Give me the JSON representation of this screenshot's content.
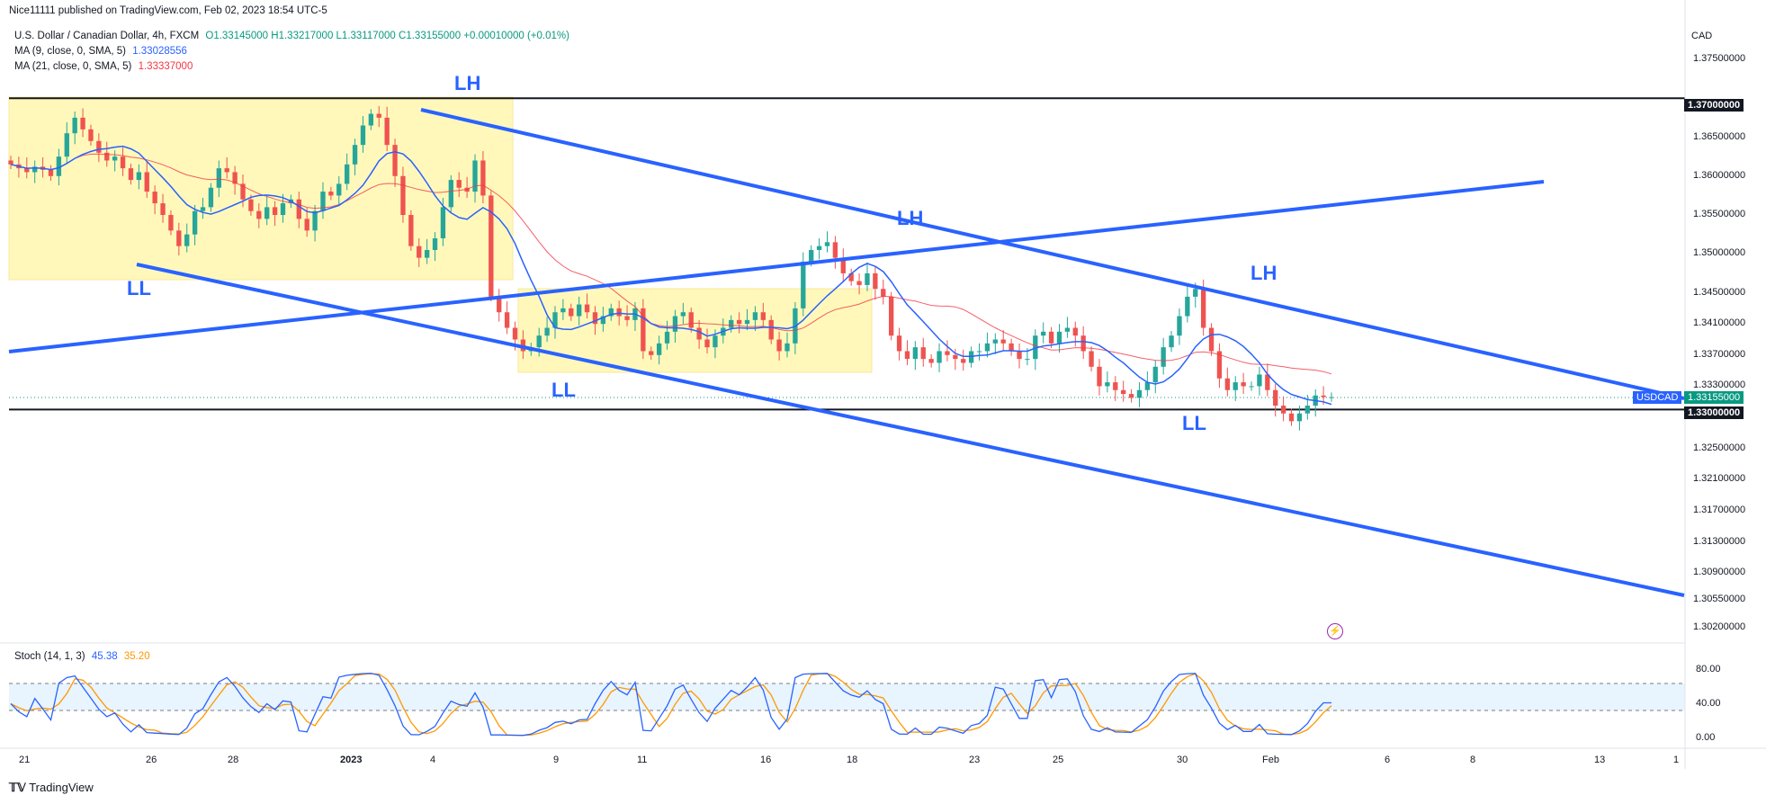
{
  "header": {
    "publisher": "Nice11111 published on TradingView.com, Feb 02, 2023 18:54 UTC-5",
    "symbol_line": "U.S. Dollar / Canadian Dollar, 4h, FXCM",
    "ohlc": "O1.33145000  H1.33217000  L1.33117000  C1.33155000  +0.00010000 (+0.01%)",
    "ma9_label": "MA (9, close, 0, SMA, 5)",
    "ma9_value": "1.33028556",
    "ma21_label": "MA (21, close, 0, SMA, 5)",
    "ma21_value": "1.33337000"
  },
  "price_axis": {
    "currency": "CAD",
    "ticks": [
      "1.37500000",
      "1.37000000",
      "1.36500000",
      "1.36000000",
      "1.35500000",
      "1.35000000",
      "1.34500000",
      "1.34100000",
      "1.33700000",
      "1.33300000",
      "1.33000000",
      "1.32500000",
      "1.32100000",
      "1.31700000",
      "1.31300000",
      "1.30900000",
      "1.30550000",
      "1.30200000"
    ],
    "tick_values": [
      1.375,
      1.37,
      1.365,
      1.36,
      1.355,
      1.35,
      1.345,
      1.341,
      1.337,
      1.333,
      1.33,
      1.325,
      1.321,
      1.317,
      1.313,
      1.309,
      1.3055,
      1.302
    ],
    "highlight_top": "1.37000000",
    "highlight_bottom": "1.33000000",
    "symbol_tag": "USDCAD",
    "last_price": "1.33155000"
  },
  "time_axis": [
    "21",
    "26",
    "28",
    "2023",
    "4",
    "9",
    "11",
    "16",
    "18",
    "23",
    "25",
    "30",
    "Feb",
    "6",
    "8",
    "13",
    "1"
  ],
  "wave_labels": [
    "LH",
    "LH",
    "LH",
    "LL",
    "LL",
    "LL"
  ],
  "stoch": {
    "label": "Stoch (14, 1, 3)",
    "k_value": "45.38",
    "d_value": "35.20",
    "ticks": [
      "80.00",
      "40.00",
      "0.00"
    ]
  },
  "footer": {
    "brand": "TradingView"
  },
  "colors": {
    "up": "#26a69a",
    "down": "#ef5350",
    "ma9": "#2962ff",
    "ma21": "#f23645",
    "trend": "#2962ff",
    "zone": "#fff59d",
    "stoch_k": "#2962ff",
    "stoch_d": "#ff9800"
  },
  "chart_data": {
    "type": "candlestick",
    "title": "U.S. Dollar / Canadian Dollar, 4h, FXCM",
    "ylim": [
      1.3,
      1.378
    ],
    "horizontal_levels": [
      1.37,
      1.33
    ],
    "closes": [
      1.3615,
      1.361,
      1.3605,
      1.3612,
      1.3608,
      1.36,
      1.3625,
      1.3655,
      1.3675,
      1.366,
      1.3645,
      1.363,
      1.362,
      1.3625,
      1.361,
      1.3595,
      1.3605,
      1.358,
      1.3565,
      1.355,
      1.353,
      1.351,
      1.3525,
      1.3555,
      1.356,
      1.3585,
      1.361,
      1.3605,
      1.359,
      1.357,
      1.3555,
      1.3545,
      1.356,
      1.355,
      1.3565,
      1.357,
      1.3545,
      1.353,
      1.3555,
      1.358,
      1.3575,
      1.359,
      1.3615,
      1.364,
      1.3665,
      1.368,
      1.3675,
      1.364,
      1.36,
      1.355,
      1.351,
      1.3495,
      1.3505,
      1.352,
      1.356,
      1.3595,
      1.3585,
      1.358,
      1.362,
      1.3575,
      1.3445,
      1.3425,
      1.3405,
      1.339,
      1.3375,
      1.338,
      1.3395,
      1.3405,
      1.3425,
      1.343,
      1.342,
      1.3435,
      1.3425,
      1.341,
      1.342,
      1.343,
      1.342,
      1.3415,
      1.343,
      1.3375,
      1.337,
      1.3385,
      1.34,
      1.342,
      1.3425,
      1.3405,
      1.339,
      1.338,
      1.3395,
      1.3405,
      1.3415,
      1.341,
      1.3415,
      1.3425,
      1.3415,
      1.339,
      1.3375,
      1.3385,
      1.343,
      1.349,
      1.3505,
      1.351,
      1.3515,
      1.3495,
      1.3475,
      1.3465,
      1.346,
      1.3475,
      1.3455,
      1.3445,
      1.3395,
      1.3375,
      1.3365,
      1.338,
      1.3365,
      1.336,
      1.3375,
      1.337,
      1.3365,
      1.336,
      1.3375,
      1.3375,
      1.3385,
      1.339,
      1.3385,
      1.3375,
      1.3365,
      1.3365,
      1.3395,
      1.34,
      1.3385,
      1.34,
      1.3405,
      1.3395,
      1.3375,
      1.3355,
      1.333,
      1.3335,
      1.3325,
      1.332,
      1.3315,
      1.3325,
      1.3335,
      1.3355,
      1.338,
      1.3395,
      1.342,
      1.3445,
      1.3455,
      1.3405,
      1.3375,
      1.334,
      1.3325,
      1.3335,
      1.333,
      1.333,
      1.3345,
      1.3325,
      1.3305,
      1.3295,
      1.3285,
      1.3295,
      1.3305,
      1.3318,
      1.3316,
      1.3316
    ],
    "stoch_k_range": [
      0,
      100
    ],
    "stoch_levels": [
      80,
      40
    ]
  }
}
